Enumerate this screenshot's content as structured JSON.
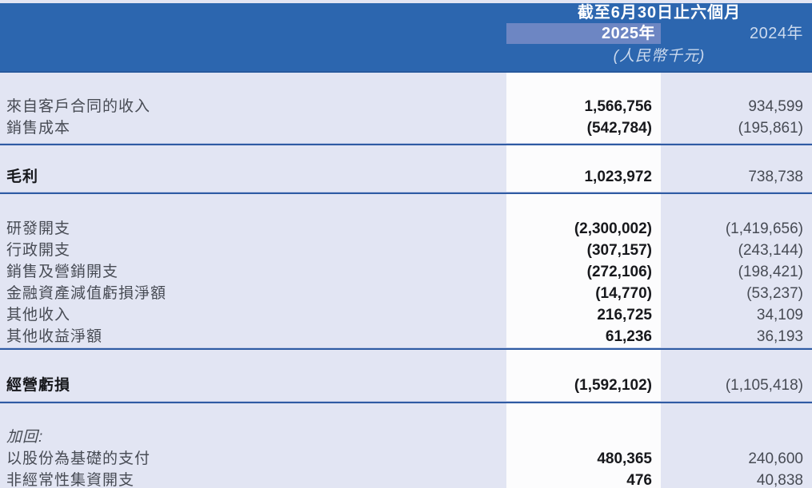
{
  "header": {
    "period_title": "截至6月30日止六個月",
    "col_2025": "2025年",
    "col_2024": "2024年",
    "currency_note": "(人民幣千元)"
  },
  "table": {
    "rows": [
      {
        "label": "來自客戶合同的收入",
        "v2025": "1,566,756",
        "v2024": "934,599",
        "style": "normal"
      },
      {
        "label": "銷售成本",
        "v2025": "(542,784)",
        "v2024": "(195,861)",
        "style": "normal"
      },
      {
        "label": "毛利",
        "v2025": "1,023,972",
        "v2024": "738,738",
        "style": "bold"
      },
      {
        "label": "研發開支",
        "v2025": "(2,300,002)",
        "v2024": "(1,419,656)",
        "style": "normal"
      },
      {
        "label": "行政開支",
        "v2025": "(307,157)",
        "v2024": "(243,144)",
        "style": "normal"
      },
      {
        "label": "銷售及營銷開支",
        "v2025": "(272,106)",
        "v2024": "(198,421)",
        "style": "normal"
      },
      {
        "label": "金融資產減值虧損淨額",
        "v2025": "(14,770)",
        "v2024": "(53,237)",
        "style": "normal"
      },
      {
        "label": "其他收入",
        "v2025": "216,725",
        "v2024": "34,109",
        "style": "normal"
      },
      {
        "label": "其他收益淨額",
        "v2025": "61,236",
        "v2024": "36,193",
        "style": "normal"
      },
      {
        "label": "經營虧損",
        "v2025": "(1,592,102)",
        "v2024": "(1,105,418)",
        "style": "bold"
      },
      {
        "label": "加回:",
        "v2025": "",
        "v2024": "",
        "style": "italic"
      },
      {
        "label": "以股份為基礎的支付",
        "v2025": "480,365",
        "v2024": "240,600",
        "style": "normal"
      },
      {
        "label": "非經常性集資開支",
        "v2025": "476",
        "v2024": "40,838",
        "style": "normal"
      }
    ]
  },
  "colors": {
    "header_bg": "#2c66af",
    "header_border": "#27599c",
    "highlight_2025": "#6d86c3",
    "body_bg": "#e2e5f3",
    "column_2025_bg": "#fcfcfd",
    "rule_dark": "#2f5ba3",
    "rule_light": "#c2cce8",
    "text_primary": "#474b54",
    "text_bold": "#17181c",
    "header_text_muted": "#ccdaee"
  }
}
